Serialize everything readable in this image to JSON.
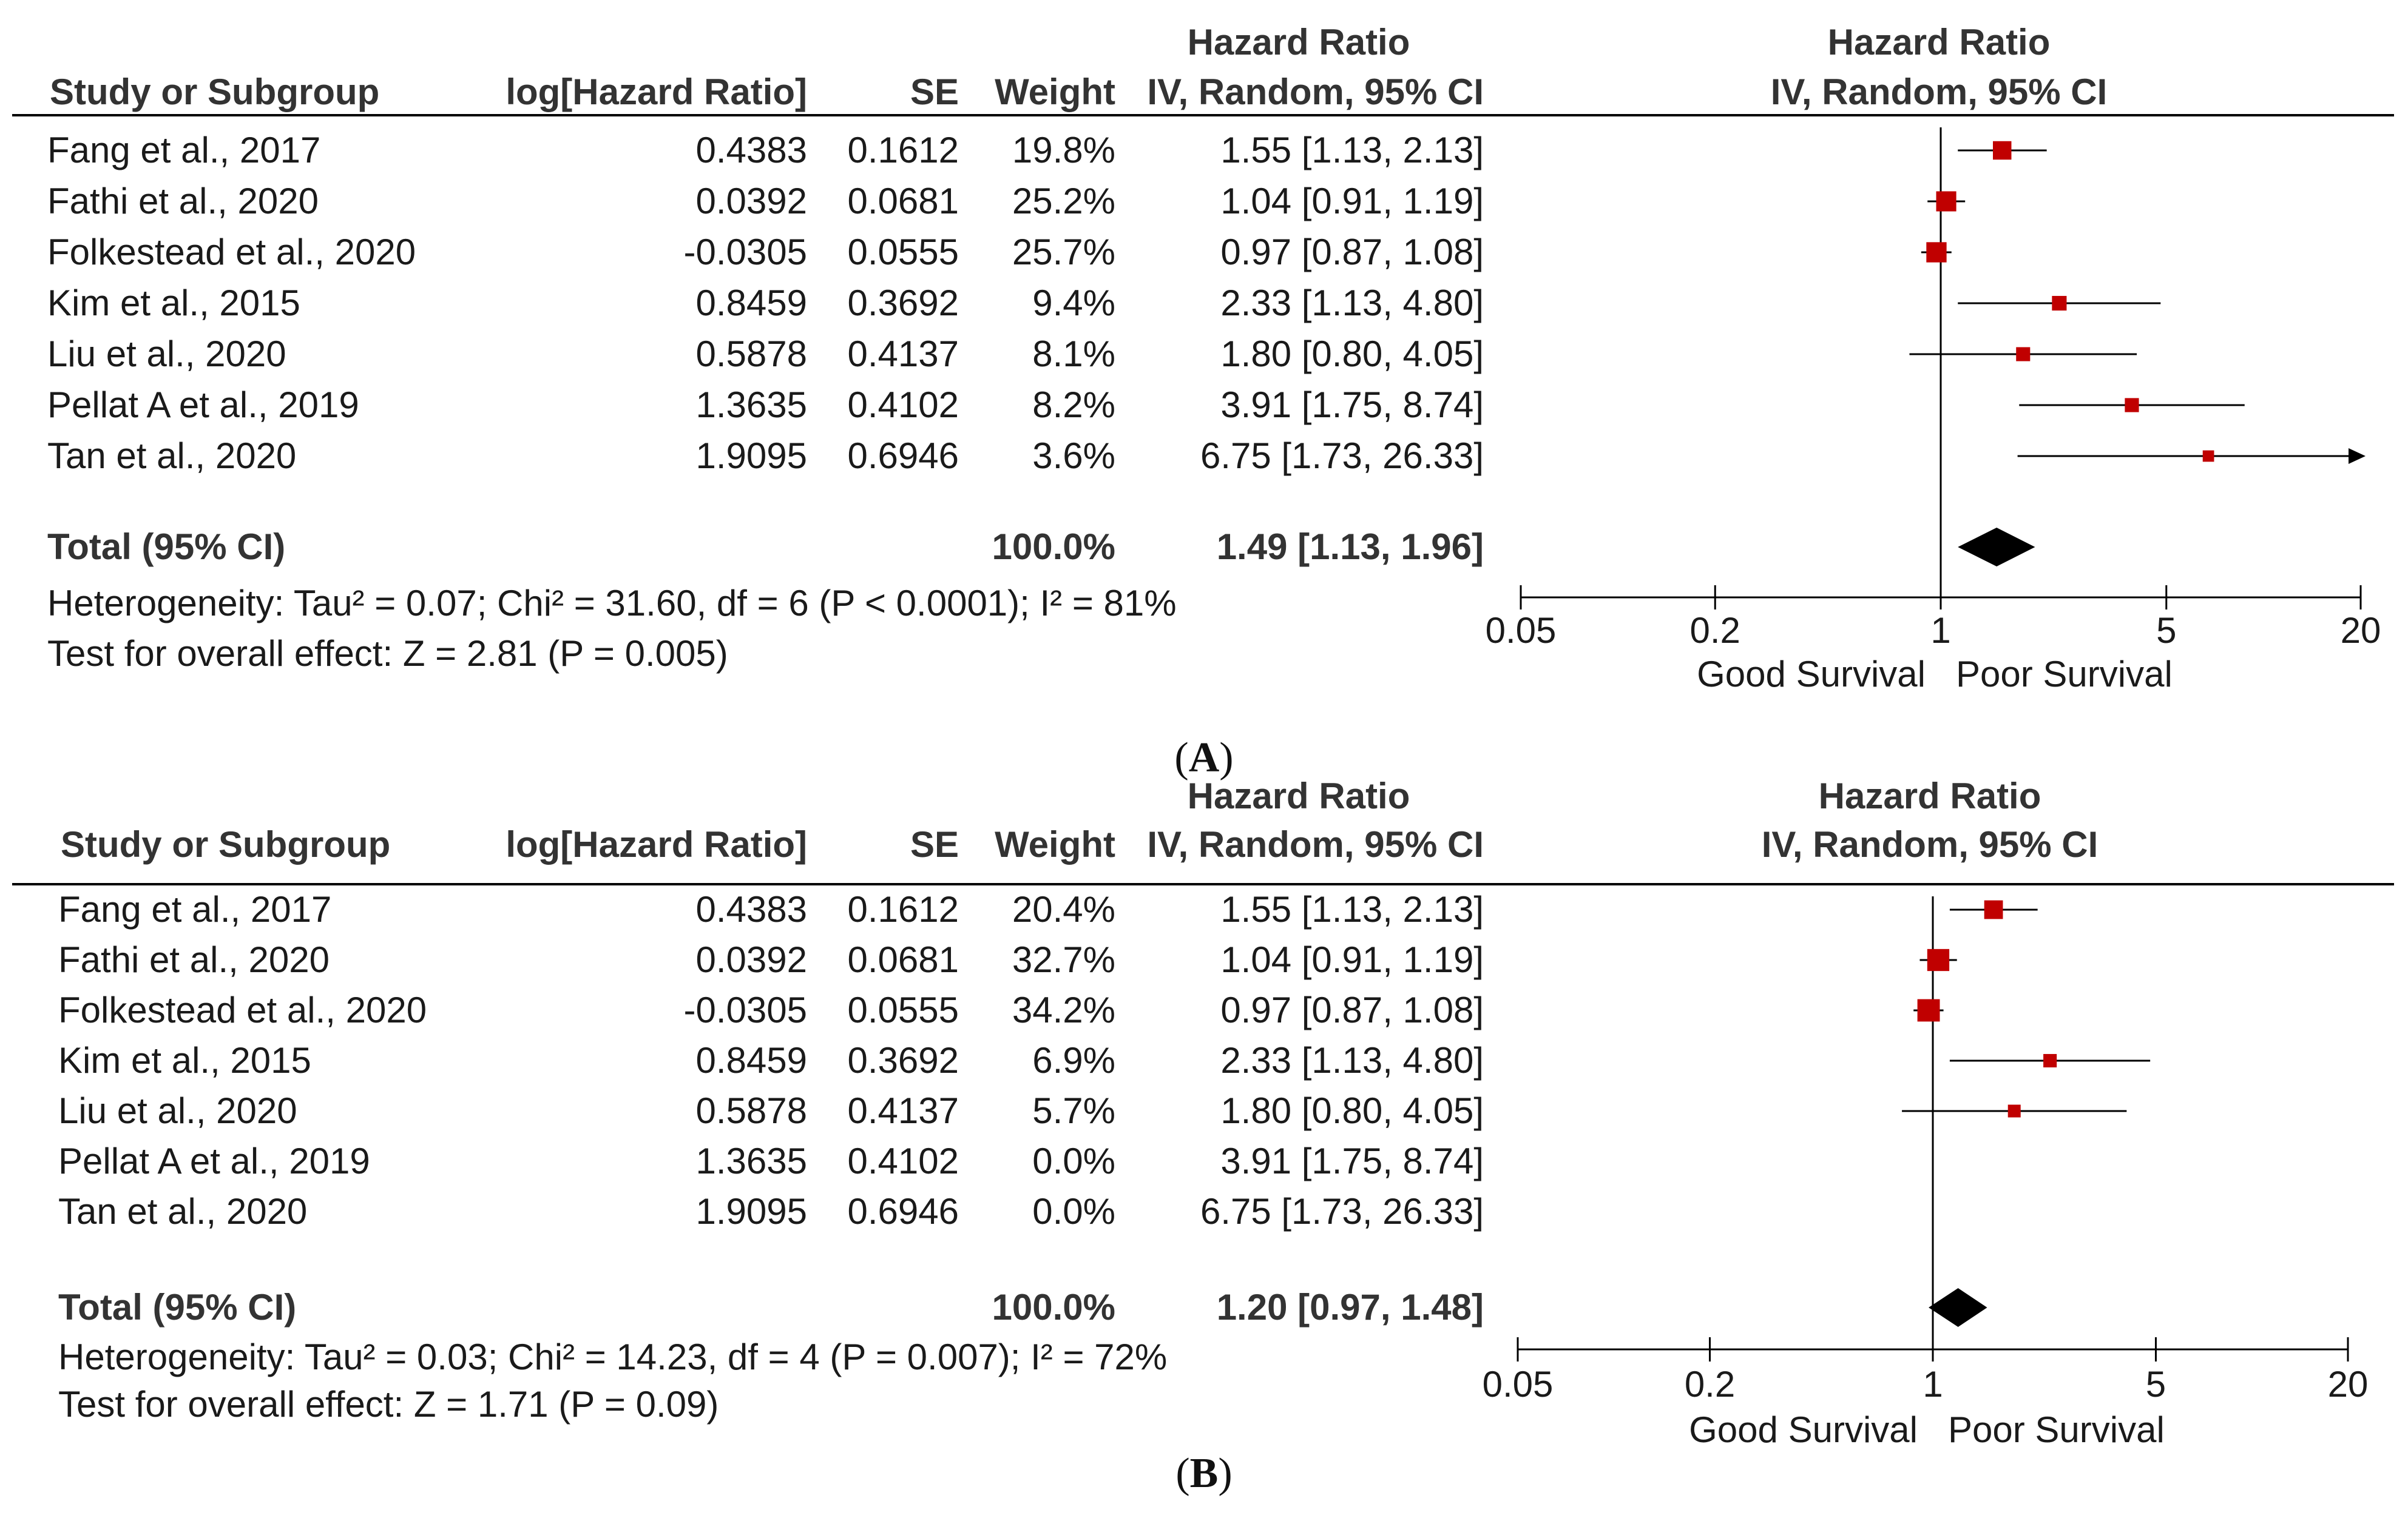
{
  "chart_data": [
    {
      "type": "forest",
      "panel_label": "A",
      "columns": {
        "study": "Study or Subgroup",
        "log_hr": "log[Hazard Ratio]",
        "se": "SE",
        "weight": "Weight",
        "hr_group": "Hazard Ratio",
        "hr_method": "IV, Random, 95% CI",
        "plot_group": "Hazard Ratio",
        "plot_method": "IV, Random, 95% CI"
      },
      "studies": [
        {
          "name": "Fang et al., 2017",
          "log_hr": "0.4383",
          "se": "0.1612",
          "weight": "19.8%",
          "ci_text": "1.55 [1.13, 2.13]",
          "hr": 1.55,
          "lo": 1.13,
          "hi": 2.13,
          "w": 19.8
        },
        {
          "name": "Fathi et al., 2020",
          "log_hr": "0.0392",
          "se": "0.0681",
          "weight": "25.2%",
          "ci_text": "1.04 [0.91, 1.19]",
          "hr": 1.04,
          "lo": 0.91,
          "hi": 1.19,
          "w": 25.2
        },
        {
          "name": "Folkestead et al., 2020",
          "log_hr": "-0.0305",
          "se": "0.0555",
          "weight": "25.7%",
          "ci_text": "0.97 [0.87, 1.08]",
          "hr": 0.97,
          "lo": 0.87,
          "hi": 1.08,
          "w": 25.7
        },
        {
          "name": "Kim et al., 2015",
          "log_hr": "0.8459",
          "se": "0.3692",
          "weight": "9.4%",
          "ci_text": "2.33 [1.13, 4.80]",
          "hr": 2.33,
          "lo": 1.13,
          "hi": 4.8,
          "w": 9.4
        },
        {
          "name": "Liu et al., 2020",
          "log_hr": "0.5878",
          "se": "0.4137",
          "weight": "8.1%",
          "ci_text": "1.80 [0.80, 4.05]",
          "hr": 1.8,
          "lo": 0.8,
          "hi": 4.05,
          "w": 8.1
        },
        {
          "name": "Pellat A et al., 2019",
          "log_hr": "1.3635",
          "se": "0.4102",
          "weight": "8.2%",
          "ci_text": "3.91 [1.75, 8.74]",
          "hr": 3.91,
          "lo": 1.75,
          "hi": 8.74,
          "w": 8.2
        },
        {
          "name": "Tan et al., 2020",
          "log_hr": "1.9095",
          "se": "0.6946",
          "weight": "3.6%",
          "ci_text": "6.75 [1.73, 26.33]",
          "hr": 6.75,
          "lo": 1.73,
          "hi": 26.33,
          "w": 3.6
        }
      ],
      "total": {
        "label": "Total (95% CI)",
        "weight": "100.0%",
        "ci_text": "1.49 [1.13, 1.96]",
        "hr": 1.49,
        "lo": 1.13,
        "hi": 1.96
      },
      "heterogeneity": "Heterogeneity: Tau² = 0.07; Chi² = 31.60, df = 6 (P < 0.0001); I² = 81%",
      "overall_test": "Test for overall effect: Z = 2.81 (P = 0.005)",
      "x_scale": "log",
      "x_range": [
        0.05,
        20
      ],
      "x_ticks": [
        0.05,
        0.2,
        1,
        5,
        20
      ],
      "x_tick_labels": [
        "0.05",
        "0.2",
        "1",
        "5",
        "20"
      ],
      "favours_left": "Good Survival",
      "favours_right": "Poor Survival",
      "colors": {
        "marker": "#c00000",
        "diamond": "#000000",
        "line": "#000000"
      }
    },
    {
      "type": "forest",
      "panel_label": "B",
      "columns": {
        "study": "Study or Subgroup",
        "log_hr": "log[Hazard Ratio]",
        "se": "SE",
        "weight": "Weight",
        "hr_group": "Hazard Ratio",
        "hr_method": "IV, Random, 95% CI",
        "plot_group": "Hazard Ratio",
        "plot_method": "IV, Random, 95% CI"
      },
      "studies": [
        {
          "name": "Fang et al., 2017",
          "log_hr": "0.4383",
          "se": "0.1612",
          "weight": "20.4%",
          "ci_text": "1.55 [1.13, 2.13]",
          "hr": 1.55,
          "lo": 1.13,
          "hi": 2.13,
          "w": 20.4
        },
        {
          "name": "Fathi et al., 2020",
          "log_hr": "0.0392",
          "se": "0.0681",
          "weight": "32.7%",
          "ci_text": "1.04 [0.91, 1.19]",
          "hr": 1.04,
          "lo": 0.91,
          "hi": 1.19,
          "w": 32.7
        },
        {
          "name": "Folkestead et al., 2020",
          "log_hr": "-0.0305",
          "se": "0.0555",
          "weight": "34.2%",
          "ci_text": "0.97 [0.87, 1.08]",
          "hr": 0.97,
          "lo": 0.87,
          "hi": 1.08,
          "w": 34.2
        },
        {
          "name": "Kim et al., 2015",
          "log_hr": "0.8459",
          "se": "0.3692",
          "weight": "6.9%",
          "ci_text": "2.33 [1.13, 4.80]",
          "hr": 2.33,
          "lo": 1.13,
          "hi": 4.8,
          "w": 6.9
        },
        {
          "name": "Liu et al., 2020",
          "log_hr": "0.5878",
          "se": "0.4137",
          "weight": "5.7%",
          "ci_text": "1.80 [0.80, 4.05]",
          "hr": 1.8,
          "lo": 0.8,
          "hi": 4.05,
          "w": 5.7
        },
        {
          "name": "Pellat A et al., 2019",
          "log_hr": "1.3635",
          "se": "0.4102",
          "weight": "0.0%",
          "ci_text": "3.91 [1.75, 8.74]",
          "hr": 3.91,
          "lo": 1.75,
          "hi": 8.74,
          "w": 0.0
        },
        {
          "name": "Tan et al., 2020",
          "log_hr": "1.9095",
          "se": "0.6946",
          "weight": "0.0%",
          "ci_text": "6.75 [1.73, 26.33]",
          "hr": 6.75,
          "lo": 1.73,
          "hi": 26.33,
          "w": 0.0
        }
      ],
      "total": {
        "label": "Total (95% CI)",
        "weight": "100.0%",
        "ci_text": "1.20 [0.97, 1.48]",
        "hr": 1.2,
        "lo": 0.97,
        "hi": 1.48
      },
      "heterogeneity": "Heterogeneity: Tau² = 0.03; Chi² = 14.23, df = 4 (P = 0.007); I² = 72%",
      "overall_test": "Test for overall effect: Z = 1.71 (P = 0.09)",
      "x_scale": "log",
      "x_range": [
        0.05,
        20
      ],
      "x_ticks": [
        0.05,
        0.2,
        1,
        5,
        20
      ],
      "x_tick_labels": [
        "0.05",
        "0.2",
        "1",
        "5",
        "20"
      ],
      "favours_left": "Good Survival",
      "favours_right": "Poor Survival",
      "colors": {
        "marker": "#c00000",
        "diamond": "#000000",
        "line": "#000000"
      }
    }
  ]
}
